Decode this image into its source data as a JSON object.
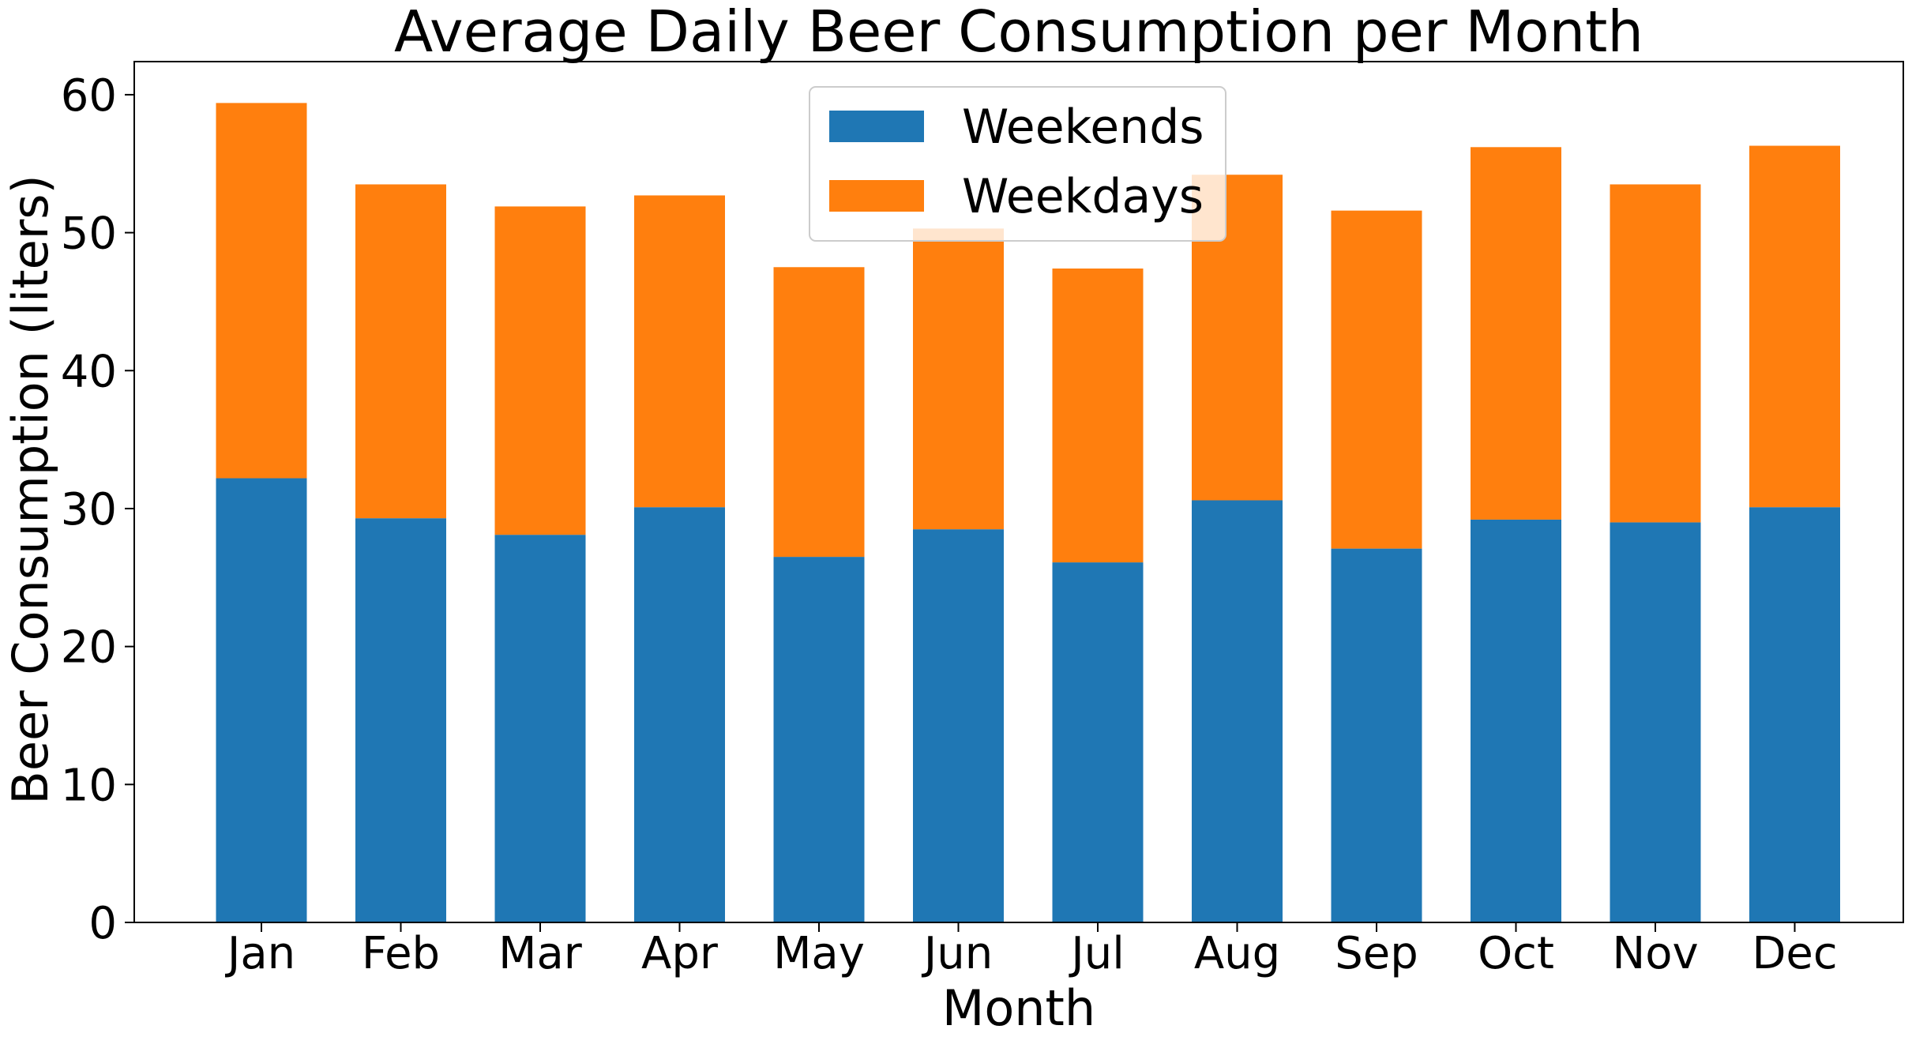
{
  "chart_data": {
    "type": "bar",
    "stacked": true,
    "title": "Average Daily Beer Consumption per Month",
    "xlabel": "Month",
    "ylabel": "Beer Consumption (liters)",
    "categories": [
      "Jan",
      "Feb",
      "Mar",
      "Apr",
      "May",
      "Jun",
      "Jul",
      "Aug",
      "Sep",
      "Oct",
      "Nov",
      "Dec"
    ],
    "series": [
      {
        "name": "Weekends",
        "color": "#1f77b4",
        "values": [
          32.2,
          29.3,
          28.1,
          30.1,
          26.5,
          28.5,
          26.1,
          30.6,
          27.1,
          29.2,
          29.0,
          30.1
        ]
      },
      {
        "name": "Weekdays",
        "color": "#ff7f0e",
        "values": [
          27.2,
          24.2,
          23.8,
          22.6,
          21.0,
          21.8,
          21.3,
          23.6,
          24.5,
          27.0,
          24.5,
          26.2
        ]
      }
    ],
    "ylim": [
      0,
      62.4
    ],
    "yticks": [
      0,
      10,
      20,
      30,
      40,
      50,
      60
    ],
    "grid": false,
    "legend": "top-center"
  }
}
